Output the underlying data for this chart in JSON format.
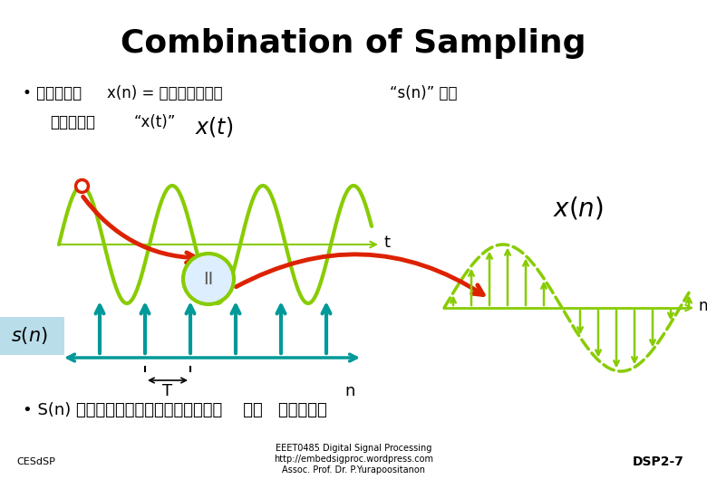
{
  "title": "Combination of Sampling",
  "title_fontsize": 26,
  "title_fontweight": "bold",
  "bg_color": "#ffffff",
  "bullet1_line1_th1": "• สญญาณ",
  "bullet1_line1_xn": "x(n) = สญญาณสม",
  "bullet1_line1_right": "“s(n)” คณ",
  "bullet1_line2_th": "สญญาณ",
  "bullet1_line2_xt": "“x(t)”",
  "bullet2": "• S(n) ประกอบจากสวนยอย    คอ   อมพลส",
  "footer_left": "CESdSP",
  "footer_center": "EEET0485 Digital Signal Processing\nhttp://embedsigproc.wordpress.com\nAssoc. Prof. Dr. P.Yurapoositanon",
  "footer_right": "DSP2-7",
  "teal_color": "#009999",
  "lime_color": "#88CC00",
  "red_color": "#DD2200",
  "sn_box_color": "#ADD8E6"
}
